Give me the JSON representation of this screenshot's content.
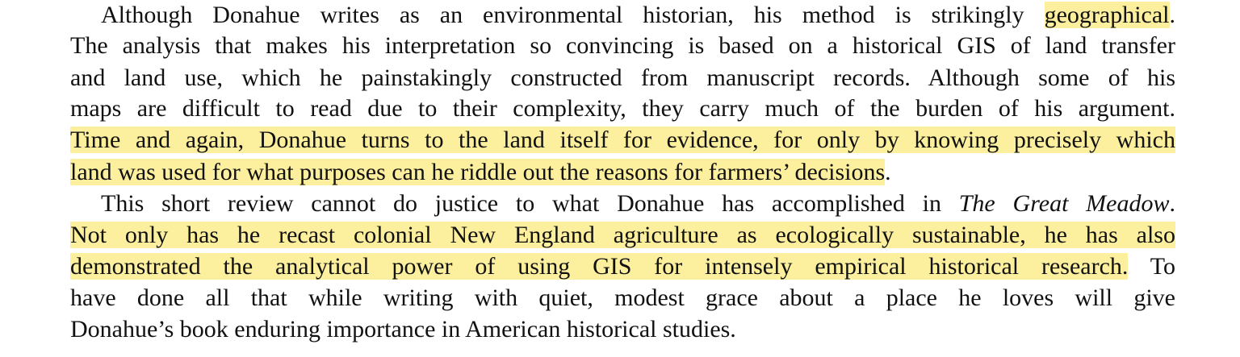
{
  "lines": [
    {
      "parts": [
        {
          "text": "Although Donahue writes as an environmental historian, his method is strikingly "
        },
        {
          "text": "geographical"
        },
        {
          "text": "."
        }
      ]
    },
    {
      "parts": [
        {
          "text": "The analysis that makes his interpretation so convincing is based on a historical GIS of land transfer"
        }
      ]
    },
    {
      "parts": [
        {
          "text": "and land use, which he painstakingly constructed from manuscript records. Although some of his"
        }
      ]
    },
    {
      "parts": [
        {
          "text": "maps are difficult to read due to their complexity, they carry much of the burden of his argument."
        }
      ]
    },
    {
      "parts": [
        {
          "text": "Time and again, Donahue turns to the land itself for evidence, for only by knowing precisely which"
        }
      ]
    },
    {
      "parts": [
        {
          "text": "land was used for what purposes can he riddle out the reasons for farmers’ decisions"
        },
        {
          "text": "."
        }
      ]
    },
    {
      "parts": [
        {
          "text": "This short review cannot do justice to what Donahue has accomplished in "
        },
        {
          "text": "The Great Meadow"
        },
        {
          "text": "."
        }
      ]
    },
    {
      "parts": [
        {
          "text": "Not only has he recast colonial New England agriculture as ecologically sustainable, he has also"
        }
      ]
    },
    {
      "parts": [
        {
          "text": "demonstrated the analytical power of using GIS for intensely empirical historical research."
        },
        {
          "text": " To"
        }
      ]
    },
    {
      "parts": [
        {
          "text": "have done all that while writing with quiet, modest grace about a place he loves will give"
        }
      ]
    },
    {
      "parts": [
        {
          "text": "Donahue’s book enduring importance in American historical studies."
        }
      ]
    }
  ],
  "colors": {
    "highlight": "#fcef9e",
    "text": "#111111",
    "background": "#ffffff"
  }
}
